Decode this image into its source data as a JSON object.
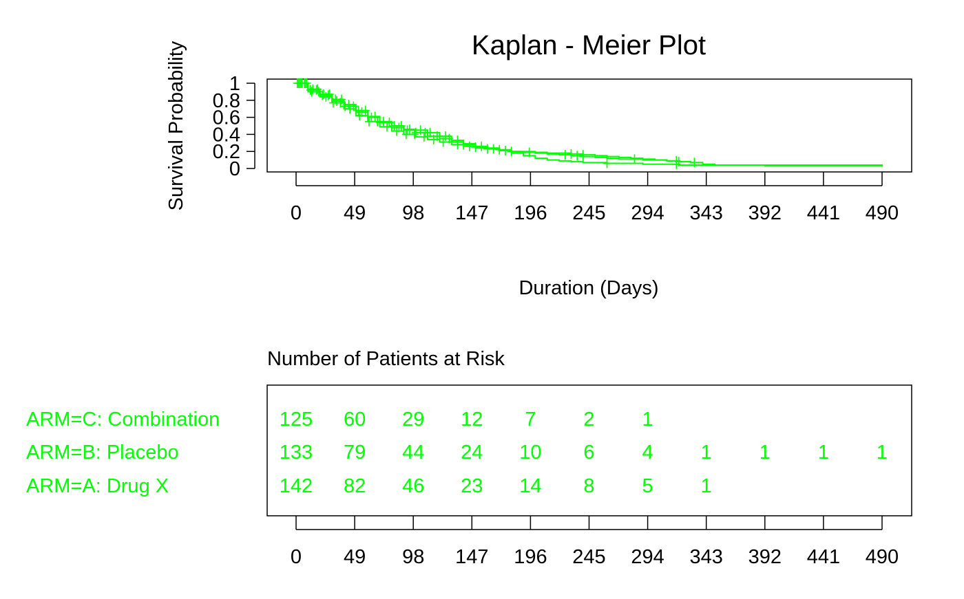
{
  "chart_data": {
    "type": "line",
    "title": "Kaplan - Meier Plot",
    "xlabel": "Duration (Days)",
    "ylabel": "Survival Probability",
    "xlim": [
      0,
      490
    ],
    "ylim": [
      0,
      1
    ],
    "xticks": [
      0,
      49,
      98,
      147,
      196,
      245,
      294,
      343,
      392,
      441,
      490
    ],
    "yticks": [
      0,
      0.2,
      0.4,
      0.6,
      0.8,
      1
    ],
    "ytick_labels": [
      "0",
      "0.2",
      "0.4",
      "0.6",
      "0.8",
      "1"
    ],
    "grid": false,
    "line_color": "#00ff00",
    "series": [
      {
        "name": "ARM=A: Drug X",
        "x": [
          0,
          10,
          20,
          30,
          40,
          50,
          60,
          70,
          80,
          90,
          100,
          110,
          120,
          130,
          140,
          150,
          160,
          170,
          180,
          190,
          200,
          210,
          220,
          230,
          240,
          250,
          260,
          270,
          280,
          290,
          300,
          310,
          320,
          330,
          340,
          350,
          392,
          490
        ],
        "y": [
          1.0,
          0.93,
          0.87,
          0.81,
          0.75,
          0.68,
          0.61,
          0.55,
          0.5,
          0.46,
          0.45,
          0.42,
          0.38,
          0.33,
          0.29,
          0.26,
          0.24,
          0.22,
          0.2,
          0.19,
          0.18,
          0.17,
          0.16,
          0.15,
          0.14,
          0.13,
          0.12,
          0.11,
          0.11,
          0.1,
          0.1,
          0.09,
          0.08,
          0.07,
          0.05,
          0.04,
          0.04,
          0.03
        ],
        "censor_x": [
          2,
          5,
          9,
          14,
          18,
          23,
          28,
          33,
          38,
          44,
          52,
          58,
          66,
          73,
          82,
          88,
          95,
          104,
          112,
          125,
          135,
          155,
          170,
          195,
          225,
          235,
          240,
          283,
          318,
          333
        ]
      },
      {
        "name": "ARM=B: Placebo",
        "x": [
          0,
          10,
          20,
          30,
          40,
          50,
          60,
          70,
          80,
          90,
          100,
          110,
          120,
          130,
          140,
          150,
          160,
          170,
          180,
          190,
          200,
          210,
          220,
          230,
          240,
          250,
          260,
          270,
          280,
          290,
          300,
          310,
          320,
          330,
          340,
          392,
          490
        ],
        "y": [
          1.0,
          0.92,
          0.86,
          0.79,
          0.73,
          0.66,
          0.6,
          0.54,
          0.48,
          0.45,
          0.42,
          0.38,
          0.35,
          0.31,
          0.28,
          0.25,
          0.23,
          0.21,
          0.2,
          0.2,
          0.19,
          0.18,
          0.18,
          0.17,
          0.16,
          0.15,
          0.14,
          0.13,
          0.12,
          0.11,
          0.1,
          0.09,
          0.08,
          0.07,
          0.04,
          0.03,
          0.02
        ],
        "censor_x": [
          3,
          7,
          12,
          17,
          22,
          27,
          34,
          41,
          48,
          55,
          63,
          70,
          78,
          86,
          93,
          100,
          108,
          118,
          128,
          140,
          150,
          165,
          180,
          230,
          240,
          320
        ]
      },
      {
        "name": "ARM=C: Combination",
        "x": [
          0,
          10,
          20,
          30,
          40,
          50,
          60,
          70,
          80,
          90,
          100,
          110,
          120,
          130,
          140,
          150,
          160,
          170,
          180,
          190,
          200,
          210,
          220,
          230,
          240,
          250,
          260,
          270,
          280,
          290,
          300,
          310,
          320,
          330,
          340
        ],
        "y": [
          1.0,
          0.9,
          0.84,
          0.77,
          0.7,
          0.62,
          0.55,
          0.49,
          0.44,
          0.4,
          0.37,
          0.34,
          0.31,
          0.28,
          0.26,
          0.24,
          0.23,
          0.21,
          0.18,
          0.15,
          0.12,
          0.1,
          0.09,
          0.08,
          0.07,
          0.07,
          0.06,
          0.06,
          0.06,
          0.05,
          0.05,
          0.05,
          0.04,
          0.04,
          0.03
        ],
        "censor_x": [
          1,
          4,
          8,
          13,
          19,
          25,
          31,
          37,
          45,
          53,
          61,
          68,
          76,
          84,
          92,
          99,
          107,
          115,
          123,
          135,
          145,
          160,
          175,
          260,
          318
        ]
      }
    ],
    "risk_table": {
      "title": "Number of Patients at Risk",
      "times": [
        0,
        49,
        98,
        147,
        196,
        245,
        294,
        343,
        392,
        441,
        490
      ],
      "rows": [
        {
          "label": "ARM=C: Combination",
          "counts": [
            "125",
            "60",
            "29",
            "12",
            "7",
            "2",
            "1",
            "",
            "",
            "",
            ""
          ]
        },
        {
          "label": "ARM=B: Placebo",
          "counts": [
            "133",
            "79",
            "44",
            "24",
            "10",
            "6",
            "4",
            "1",
            "1",
            "1",
            "1"
          ]
        },
        {
          "label": "ARM=A: Drug X",
          "counts": [
            "142",
            "82",
            "46",
            "23",
            "14",
            "8",
            "5",
            "1",
            "",
            "",
            ""
          ]
        }
      ]
    }
  }
}
